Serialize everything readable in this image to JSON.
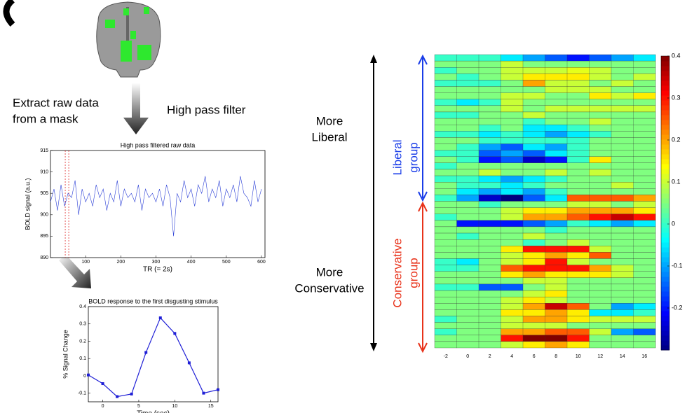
{
  "labels": {
    "extract": [
      "Extract raw data",
      "from a mask"
    ],
    "filter": "High pass filter",
    "liberal": [
      "More",
      "Liberal"
    ],
    "conservative": [
      "More",
      "Conservative"
    ],
    "liberal_group": [
      "Liberal",
      "group"
    ],
    "conservative_group": [
      "Conservative",
      "group"
    ]
  },
  "chart_data": [
    {
      "type": "line",
      "title": "High pass filtered raw data",
      "xlabel": "TR (= 2s)",
      "ylabel": "BOLD signal (a.u.)",
      "color": "#2b3fd6",
      "x": [
        0,
        10,
        20,
        30,
        40,
        50,
        60,
        70,
        80,
        90,
        100,
        110,
        120,
        130,
        140,
        150,
        160,
        170,
        180,
        190,
        200,
        210,
        220,
        230,
        240,
        250,
        260,
        270,
        280,
        290,
        300,
        310,
        320,
        330,
        340,
        350,
        360,
        370,
        380,
        390,
        400,
        410,
        420,
        430,
        440,
        450,
        460,
        470,
        480,
        490,
        500,
        510,
        520,
        530,
        540,
        550,
        560,
        570,
        580,
        590,
        600
      ],
      "values": [
        903,
        906,
        901,
        907,
        902,
        905,
        904,
        908,
        900,
        906,
        903,
        905,
        902,
        907,
        904,
        906,
        901,
        905,
        903,
        908,
        902,
        906,
        904,
        905,
        903,
        907,
        901,
        906,
        904,
        905,
        903,
        906,
        902,
        907,
        904,
        895,
        905,
        903,
        908,
        904,
        906,
        902,
        907,
        905,
        909,
        903,
        906,
        904,
        908,
        902,
        906,
        904,
        907,
        903,
        909,
        905,
        904,
        902,
        908,
        903,
        906
      ],
      "highlight_x": [
        42,
        52
      ],
      "highlight_color": "#e03030",
      "xlim": [
        0,
        610
      ],
      "ylim": [
        890,
        915
      ],
      "xticks": [
        100,
        200,
        300,
        400,
        500,
        600
      ],
      "yticks": [
        890,
        895,
        900,
        905,
        910,
        915
      ]
    },
    {
      "type": "line",
      "title": "BOLD response to the first disgusting stimulus",
      "xlabel": "Time (sec)",
      "ylabel": "% Signal Change",
      "color": "#1f1fd6",
      "x": [
        -2,
        0,
        2,
        4,
        6,
        8,
        10,
        12,
        14,
        16
      ],
      "values": [
        0.005,
        -0.045,
        -0.12,
        -0.105,
        0.135,
        0.335,
        0.245,
        0.075,
        -0.1,
        -0.08
      ],
      "xlim": [
        -2,
        16
      ],
      "ylim": [
        -0.15,
        0.4
      ],
      "xticks": [
        0,
        5,
        10,
        15
      ],
      "yticks": [
        -0.1,
        0,
        0.1,
        0.2,
        0.3,
        0.4
      ]
    },
    {
      "type": "heatmap",
      "colormap": "jet",
      "clim": [
        -0.3,
        0.4
      ],
      "cbar_ticks": [
        -0.2,
        -0.1,
        0,
        0.1,
        0.2,
        0.3,
        0.4
      ],
      "x": [
        -2,
        0,
        2,
        4,
        6,
        8,
        10,
        12,
        14,
        16
      ],
      "z": [
        [
          0,
          0,
          0,
          -0.05,
          -0.1,
          -0.15,
          -0.2,
          -0.15,
          -0.1,
          -0.05
        ],
        [
          0.05,
          0.05,
          0.05,
          0.1,
          0.05,
          0.05,
          0.05,
          0.05,
          0.05,
          0.05
        ],
        [
          0,
          0.05,
          0.05,
          0.1,
          0.1,
          0.1,
          0.12,
          0.1,
          0.05,
          0.05
        ],
        [
          0.05,
          0,
          0.05,
          0.1,
          0.15,
          0.15,
          0.15,
          0.1,
          0.05,
          0.1
        ],
        [
          0,
          0,
          0,
          0.05,
          0.2,
          0.1,
          0.1,
          0.05,
          0.1,
          0.05
        ],
        [
          0.05,
          0.05,
          0.05,
          0.05,
          0.05,
          0.1,
          0.1,
          0.1,
          0.05,
          0.05
        ],
        [
          0.05,
          0.05,
          0.05,
          0.1,
          0.1,
          0.05,
          0.05,
          0.15,
          0.1,
          0.15
        ],
        [
          0,
          -0.05,
          0,
          0.1,
          0.05,
          0.05,
          0.05,
          0.05,
          0.05,
          0.05
        ],
        [
          0.05,
          0.05,
          0.05,
          0.1,
          0.05,
          0.1,
          0.1,
          0.1,
          0.1,
          0.1
        ],
        [
          0,
          0,
          0.05,
          0.05,
          0.1,
          0.05,
          0.05,
          0.05,
          0.05,
          0.05
        ],
        [
          0.05,
          0.05,
          0.05,
          0.05,
          0,
          0.05,
          0.05,
          0.1,
          0.05,
          0.05
        ],
        [
          0.05,
          0.05,
          0,
          0.05,
          -0.05,
          -0.05,
          0,
          0.05,
          0.05,
          0.05
        ],
        [
          0,
          0,
          -0.05,
          0,
          -0.05,
          -0.1,
          -0.05,
          0,
          0.05,
          0.05
        ],
        [
          0.05,
          0.05,
          0,
          0,
          0,
          0,
          0,
          0.05,
          0.05,
          0.05
        ],
        [
          0.05,
          0,
          -0.1,
          -0.15,
          -0.05,
          -0.1,
          0,
          0.05,
          0.05,
          0.05
        ],
        [
          0,
          0,
          -0.15,
          -0.1,
          -0.15,
          -0.05,
          0,
          0.05,
          0.05,
          0.05
        ],
        [
          0.05,
          0,
          -0.2,
          -0.15,
          -0.25,
          -0.2,
          0,
          0.15,
          0.05,
          0.05
        ],
        [
          0,
          0.05,
          0.05,
          0.05,
          0.05,
          0.05,
          0.05,
          0.05,
          0.05,
          0.05
        ],
        [
          0.05,
          0.05,
          0.1,
          0.05,
          0.05,
          0.1,
          0.05,
          0.1,
          0.05,
          0.05
        ],
        [
          0,
          0,
          -0.05,
          -0.1,
          -0.05,
          0,
          0.05,
          0.05,
          0.05,
          0.05
        ],
        [
          0.05,
          0,
          0,
          -0.05,
          0,
          0.05,
          0.05,
          0.05,
          0.1,
          0.05
        ],
        [
          0.05,
          -0.05,
          -0.1,
          -0.05,
          -0.1,
          0,
          0.05,
          0.05,
          0.05,
          0.05
        ],
        [
          0,
          -0.1,
          -0.25,
          -0.3,
          -0.15,
          -0.05,
          0.25,
          0.25,
          0.25,
          0.2
        ],
        [
          0.05,
          0.05,
          0,
          0.05,
          0.05,
          0.05,
          0.1,
          0.1,
          0.05,
          0.1
        ],
        [
          0.05,
          0.05,
          0.05,
          0.1,
          0.15,
          0.15,
          0.2,
          0.2,
          0.2,
          0.15
        ],
        [
          0,
          0.05,
          0.05,
          0.1,
          0.2,
          0.2,
          0.25,
          0.3,
          0.35,
          0.3
        ],
        [
          0.05,
          -0.2,
          -0.2,
          -0.2,
          -0.15,
          -0.1,
          0,
          -0.05,
          -0.1,
          -0.05
        ],
        [
          0.05,
          0.05,
          0.05,
          0.05,
          0.05,
          0,
          0.05,
          0.05,
          0.05,
          0.05
        ],
        [
          0.05,
          0,
          0.05,
          0.05,
          0.1,
          0.05,
          0.05,
          0.05,
          0.05,
          0.05
        ],
        [
          0.05,
          0.05,
          0.05,
          0.05,
          0,
          0.05,
          0.1,
          0.05,
          0.05,
          0.05
        ],
        [
          0.05,
          0.05,
          0.05,
          0.15,
          0.3,
          0.3,
          0.3,
          0.1,
          0.05,
          0.05
        ],
        [
          0.05,
          0.05,
          0.05,
          0.1,
          0.15,
          0.2,
          0.15,
          0.25,
          0.05,
          0.05
        ],
        [
          0,
          -0.05,
          0.05,
          0.1,
          0.15,
          0.3,
          0.1,
          0.05,
          0.05,
          0.05
        ],
        [
          0,
          0,
          0.05,
          0.25,
          0.3,
          0.3,
          0.3,
          0.2,
          0.1,
          0.05
        ],
        [
          0.05,
          0.05,
          0.05,
          0.15,
          0.2,
          0.15,
          0.15,
          0.15,
          0.1,
          0.05
        ],
        [
          0.05,
          0.05,
          0.05,
          0.05,
          0.1,
          0.1,
          0.05,
          0.05,
          0.05,
          0.05
        ],
        [
          0,
          0,
          -0.15,
          -0.15,
          0.05,
          0.1,
          0.05,
          0.05,
          0.05,
          0.05
        ],
        [
          0.05,
          0.05,
          0.05,
          0.05,
          0.1,
          0.15,
          0.05,
          0.05,
          0.05,
          0.05
        ],
        [
          0.05,
          0.05,
          0.05,
          0.1,
          0.15,
          0.1,
          0.05,
          0.05,
          0.05,
          0.05
        ],
        [
          0.05,
          0.05,
          0.05,
          0.1,
          0.2,
          0.35,
          0.25,
          0.05,
          -0.1,
          -0.05
        ],
        [
          0.05,
          0.05,
          0.05,
          0.15,
          0.15,
          0.2,
          0.15,
          -0.05,
          -0.05,
          0
        ],
        [
          0,
          0.05,
          0.05,
          0.1,
          0.2,
          0.2,
          0.15,
          0.1,
          0.1,
          0.1
        ],
        [
          0.05,
          0.05,
          0.05,
          0.1,
          0.1,
          0.1,
          0.05,
          0.05,
          0.05,
          0.05
        ],
        [
          0,
          0.05,
          0.05,
          0.2,
          0.2,
          0.25,
          0.25,
          0.1,
          -0.1,
          -0.15
        ],
        [
          0.05,
          0.05,
          0.05,
          0.3,
          0.4,
          0.4,
          0.3,
          0.05,
          0.05,
          0.05
        ],
        [
          0.05,
          0.05,
          0.05,
          0.1,
          0.15,
          0.2,
          0.15,
          0.05,
          0.05,
          0.05
        ]
      ]
    }
  ]
}
